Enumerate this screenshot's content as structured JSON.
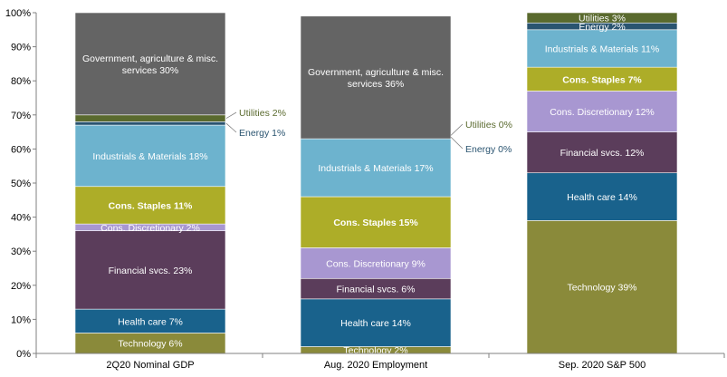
{
  "chart_data": {
    "type": "bar",
    "stacked": true,
    "categories": [
      "2Q20 Nominal GDP",
      "Aug. 2020 Employment",
      "Sep. 2020 S&P 500"
    ],
    "ylim": [
      0,
      100
    ],
    "yticks": [
      0,
      10,
      20,
      30,
      40,
      50,
      60,
      70,
      80,
      90,
      100
    ],
    "ytick_labels": [
      "0%",
      "10%",
      "20%",
      "30%",
      "40%",
      "50%",
      "60%",
      "70%",
      "80%",
      "90%",
      "100%"
    ],
    "grid": false,
    "series": [
      {
        "name": "Technology",
        "color": "#8a8a3a",
        "values": [
          6,
          2,
          39
        ]
      },
      {
        "name": "Health care",
        "color": "#19628c",
        "values": [
          7,
          14,
          14
        ]
      },
      {
        "name": "Financial svcs.",
        "color": "#5b3d5b",
        "values": [
          23,
          6,
          12
        ]
      },
      {
        "name": "Cons. Discretionary",
        "color": "#a897d1",
        "values": [
          2,
          9,
          12
        ]
      },
      {
        "name": "Cons. Staples",
        "color": "#adad28",
        "values": [
          11,
          15,
          7
        ]
      },
      {
        "name": "Industrials & Materials",
        "color": "#6db3ce",
        "values": [
          18,
          17,
          11
        ]
      },
      {
        "name": "Energy",
        "color": "#2a5470",
        "values": [
          1,
          0,
          2
        ]
      },
      {
        "name": "Utilities",
        "color": "#5a6a2e",
        "values": [
          2,
          0,
          3
        ]
      },
      {
        "name": "Government, agriculture & misc. services",
        "color": "#646464",
        "values": [
          30,
          36,
          0
        ]
      }
    ],
    "segment_labels": [
      [
        "Technology  6%",
        "Health  care 7%",
        "Financial svcs.  23%",
        "Cons. Discretionary 2%",
        "Cons. Staples 11%",
        "Industrials & Materials  18%",
        "",
        "",
        "Government,  agriculture & misc.\nservices 30%"
      ],
      [
        "Technology  2%",
        "Health  care 14%",
        "Financial svcs.  6%",
        "Cons. Discretionary 9%",
        "Cons. Staples 15%",
        "Industrials & Materials  17%",
        "",
        "",
        "Government,  agriculture & misc.\nservices 36%"
      ],
      [
        "Technology  39%",
        "Health  care 14%",
        "Financial svcs.  12%",
        "Cons. Discretionary  12%",
        "Cons. Staples 7%",
        "Industrials & Materials  11%",
        "Energy 2%",
        "Utilities  3%",
        ""
      ]
    ],
    "callouts": [
      {
        "text": "Utilities  2%",
        "color": "#5a6a2e"
      },
      {
        "text": "Energy 1%",
        "color": "#2a5470"
      },
      {
        "text": "Utilities  0%",
        "color": "#5a6a2e"
      },
      {
        "text": "Energy 0%",
        "color": "#2a5470"
      }
    ]
  }
}
